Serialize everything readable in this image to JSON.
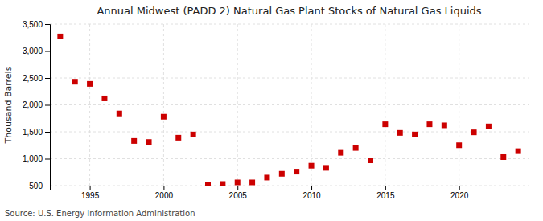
{
  "chart_data": {
    "type": "scatter",
    "title": "Annual Midwest (PADD 2) Natural Gas Plant Stocks of Natural Gas Liquids",
    "ylabel": "Thousand Barrels",
    "annotations": [
      "Source: U.S. Energy Information Administration"
    ],
    "color": "#cc0000",
    "marker": "square",
    "grid": true,
    "xlim": [
      1992.3,
      2024.7
    ],
    "xticks": [
      1995,
      2000,
      2005,
      2010,
      2015,
      2020
    ],
    "ylim": [
      500,
      3500
    ],
    "yticks": [
      500,
      {
        "value": 1000,
        "label": "1,000"
      },
      {
        "value": 1500,
        "label": "1,500"
      },
      {
        "value": 2000,
        "label": "2,000"
      },
      {
        "value": 2500,
        "label": "2,500"
      },
      {
        "value": 3000,
        "label": "3,000"
      },
      {
        "value": 3500,
        "label": "3,500"
      }
    ],
    "x": [
      1993,
      1994,
      1995,
      1996,
      1997,
      1998,
      1999,
      2000,
      2001,
      2002,
      2003,
      2004,
      2005,
      2006,
      2007,
      2008,
      2009,
      2010,
      2011,
      2012,
      2013,
      2014,
      2015,
      2016,
      2017,
      2018,
      2019,
      2020,
      2021,
      2022,
      2023,
      2024
    ],
    "values": [
      3270,
      2430,
      2390,
      2120,
      1840,
      1330,
      1310,
      1780,
      1390,
      1450,
      510,
      530,
      560,
      560,
      650,
      720,
      760,
      870,
      830,
      1110,
      1200,
      970,
      1640,
      1480,
      1450,
      1640,
      1620,
      1250,
      1490,
      1600,
      1030,
      1140
    ]
  }
}
